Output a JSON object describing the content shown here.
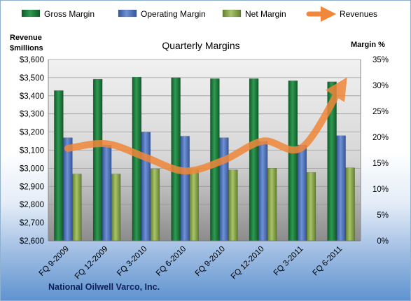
{
  "chart_data": {
    "type": "bar",
    "title": "Quarterly Margins",
    "footer": "National Oilwell Varco, Inc.",
    "left_axis": {
      "label_lines": [
        "Revenue",
        "$millions"
      ],
      "range": [
        2600,
        3600
      ],
      "step": 100,
      "prefix": "$"
    },
    "right_axis": {
      "label": "Margin %",
      "range": [
        0,
        35
      ],
      "step": 5,
      "suffix": "%"
    },
    "categories": [
      "FQ 9-2009",
      "FQ 12-2009",
      "FQ 3-2010",
      "FQ 6-2010",
      "FQ 9-2010",
      "FQ 12-2010",
      "FQ 3-2011",
      "FQ 6-2011"
    ],
    "series": [
      {
        "name": "Gross Margin",
        "type": "bar",
        "axis": "right",
        "color": "#1e7d3c",
        "values": [
          29.0,
          31.2,
          31.6,
          31.5,
          31.3,
          31.3,
          30.9,
          30.7
        ]
      },
      {
        "name": "Operating Margin",
        "type": "bar",
        "axis": "right",
        "color": "#4f74b8",
        "values": [
          19.9,
          18.5,
          21.0,
          20.2,
          19.9,
          19.2,
          18.5,
          20.3
        ]
      },
      {
        "name": "Net Margin",
        "type": "bar",
        "axis": "right",
        "color": "#8aa84a",
        "values": [
          12.9,
          12.9,
          13.9,
          13.8,
          13.7,
          14.0,
          13.2,
          14.1
        ]
      },
      {
        "name": "Revenues",
        "type": "line",
        "axis": "left",
        "color": "#f0873a",
        "values": [
          3110,
          3135,
          3060,
          2985,
          3045,
          3150,
          3115,
          3450
        ]
      }
    ],
    "grid": true,
    "legend_position": "top"
  }
}
